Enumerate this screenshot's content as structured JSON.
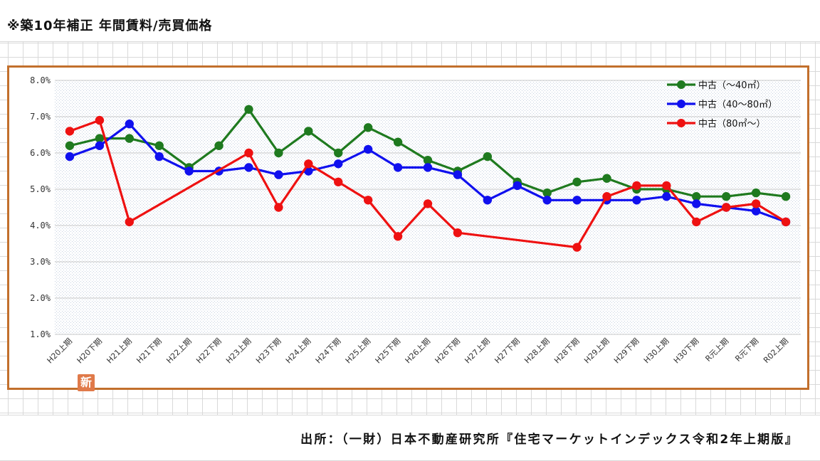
{
  "header": {
    "title": "※築10年補正 年間賃料/売買価格"
  },
  "footer": {
    "source": "出所：（一財）日本不動産研究所『住宅マーケットインデックス令和2年上期版』"
  },
  "badge": {
    "text": "新"
  },
  "colors": {
    "frame": "#c26f2c",
    "green": "#1f7a1f",
    "blue": "#1010ee",
    "red": "#ee1111"
  },
  "chart_data": {
    "type": "line",
    "categories": [
      "H20上期",
      "H20下期",
      "H21上期",
      "H21下期",
      "H22上期",
      "H22下期",
      "H23上期",
      "H23下期",
      "H24上期",
      "H24下期",
      "H25上期",
      "H25下期",
      "H26上期",
      "H26下期",
      "H27上期",
      "H27下期",
      "H28上期",
      "H28下期",
      "H29上期",
      "H29下期",
      "H30上期",
      "H30下期",
      "R元上期",
      "R元下期",
      "R02上期"
    ],
    "y_ticks": [
      "1.0%",
      "2.0%",
      "3.0%",
      "4.0%",
      "5.0%",
      "6.0%",
      "7.0%",
      "8.0%"
    ],
    "ylim": [
      1.0,
      8.0
    ],
    "grid": true,
    "legend_position": "top-right",
    "series": [
      {
        "name": "中古（～40㎡）",
        "color": "#1f7a1f",
        "values": [
          6.2,
          6.4,
          6.4,
          6.2,
          5.6,
          6.2,
          7.2,
          6.0,
          6.6,
          6.0,
          6.7,
          6.3,
          5.8,
          5.5,
          5.9,
          5.2,
          4.9,
          5.2,
          5.3,
          5.0,
          5.0,
          4.8,
          4.8,
          4.9,
          4.8
        ]
      },
      {
        "name": "中古（40～80㎡）",
        "color": "#1010ee",
        "values": [
          5.9,
          6.2,
          6.8,
          5.9,
          5.5,
          5.5,
          5.6,
          5.4,
          5.5,
          5.7,
          6.1,
          5.6,
          5.6,
          5.4,
          4.7,
          5.1,
          4.7,
          4.7,
          4.7,
          4.7,
          4.8,
          4.6,
          4.5,
          4.4,
          4.1
        ]
      },
      {
        "name": "中古（80㎡～）",
        "color": "#ee1111",
        "values": [
          6.6,
          6.9,
          4.1,
          null,
          null,
          null,
          6.0,
          4.5,
          5.7,
          5.2,
          4.7,
          3.7,
          4.6,
          3.8,
          null,
          null,
          null,
          3.4,
          4.8,
          5.1,
          5.1,
          4.1,
          4.5,
          4.6,
          4.1
        ]
      }
    ]
  }
}
